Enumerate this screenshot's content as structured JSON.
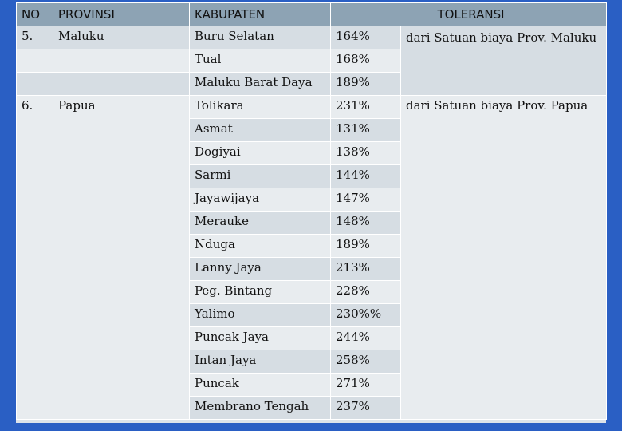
{
  "headers": {
    "no": "NO",
    "provinsi": "PROVINSI",
    "kabupaten": "KABUPATEN",
    "toleransi": "TOLERANSI"
  },
  "groups": [
    {
      "no": "5.",
      "provinsi": "Maluku",
      "keterangan": "dari Satuan biaya  Prov. Maluku",
      "rows": [
        {
          "kabupaten": "Buru Selatan",
          "toleransi": "164%"
        },
        {
          "kabupaten": "Tual",
          "toleransi": "168%"
        },
        {
          "kabupaten": "Maluku Barat Daya",
          "toleransi": "189%"
        }
      ]
    },
    {
      "no": "6.",
      "provinsi": "Papua",
      "keterangan": "dari Satuan biaya  Prov. Papua",
      "rows": [
        {
          "kabupaten": "Tolikara",
          "toleransi": "231%"
        },
        {
          "kabupaten": "Asmat",
          "toleransi": "131%"
        },
        {
          "kabupaten": "Dogiyai",
          "toleransi": "138%"
        },
        {
          "kabupaten": "Sarmi",
          "toleransi": "144%"
        },
        {
          "kabupaten": "Jayawijaya",
          "toleransi": "147%"
        },
        {
          "kabupaten": "Merauke",
          "toleransi": "148%"
        },
        {
          "kabupaten": "Nduga",
          "toleransi": "189%"
        },
        {
          "kabupaten": "Lanny Jaya",
          "toleransi": "213%"
        },
        {
          "kabupaten": "Peg. Bintang",
          "toleransi": "228%"
        },
        {
          "kabupaten": "Yalimo",
          "toleransi": "230%%"
        },
        {
          "kabupaten": "Puncak Jaya",
          "toleransi": "244%"
        },
        {
          "kabupaten": "Intan Jaya",
          "toleransi": "258%"
        },
        {
          "kabupaten": "Puncak",
          "toleransi": "271%"
        },
        {
          "kabupaten": "Membrano Tengah",
          "toleransi": "237%"
        }
      ]
    }
  ]
}
